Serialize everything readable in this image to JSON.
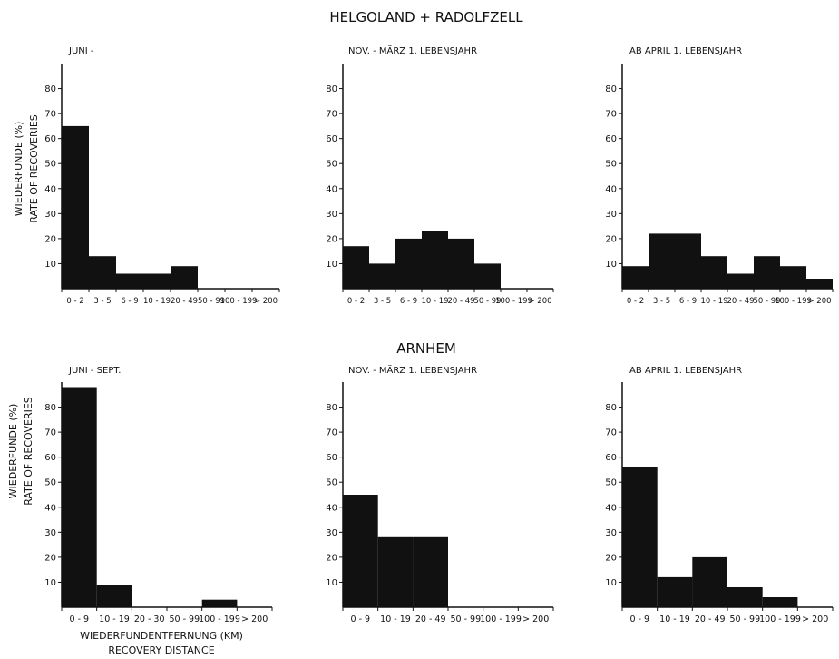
{
  "figure": {
    "top_heading": "HELGOLAND + RADOLFZELL",
    "middle_heading": "ARNHEM",
    "ylabel_de": "WIEDERFUNDE (%)",
    "ylabel_en": "RATE OF RECOVERIES",
    "xlabel_de": "WIEDERFUNDENTFERNUNG (KM)",
    "xlabel_en": "RECOVERY DISTANCE",
    "colors": {
      "bars": "#111111",
      "axis": "#111111"
    }
  },
  "chart_data": [
    {
      "type": "bar",
      "group": "HELGOLAND + RADOLFZELL",
      "title": "JUNI -",
      "categories": [
        "0 - 2",
        "3 - 5",
        "6 - 9",
        "10 - 19",
        "20 - 49",
        "50 - 99",
        "100 - 199",
        "> 200"
      ],
      "values": [
        65,
        13,
        6,
        6,
        9,
        0,
        0,
        0
      ],
      "yticks": [
        10,
        20,
        30,
        40,
        50,
        60,
        70,
        80
      ],
      "ylim": [
        0,
        90
      ]
    },
    {
      "type": "bar",
      "group": "HELGOLAND + RADOLFZELL",
      "title": "NOV. - MÄRZ 1. LEBENSJAHR",
      "categories": [
        "0 - 2",
        "3 - 5",
        "6 - 9",
        "10 - 19",
        "20 - 49",
        "50 - 99",
        "100 - 199",
        "> 200"
      ],
      "values": [
        17,
        10,
        20,
        23,
        20,
        10,
        0,
        0
      ],
      "yticks": [
        10,
        20,
        30,
        40,
        50,
        60,
        70,
        80
      ],
      "ylim": [
        0,
        90
      ]
    },
    {
      "type": "bar",
      "group": "HELGOLAND + RADOLFZELL",
      "title": "AB APRIL 1. LEBENSJAHR",
      "categories": [
        "0 - 2",
        "3 - 5",
        "6 - 9",
        "10 - 19",
        "20 - 49",
        "50 - 99",
        "100 - 199",
        "> 200"
      ],
      "values": [
        9,
        22,
        22,
        13,
        6,
        13,
        9,
        4
      ],
      "yticks": [
        10,
        20,
        30,
        40,
        50,
        60,
        70,
        80
      ],
      "ylim": [
        0,
        90
      ]
    },
    {
      "type": "bar",
      "group": "ARNHEM",
      "title": "JUNI - SEPT.",
      "categories": [
        "0 - 9",
        "10 - 19",
        "20 - 30",
        "50 - 99",
        "100 - 199",
        "> 200"
      ],
      "values": [
        88,
        9,
        0,
        0,
        3,
        0
      ],
      "yticks": [
        10,
        20,
        30,
        40,
        50,
        60,
        70,
        80
      ],
      "ylim": [
        0,
        90
      ]
    },
    {
      "type": "bar",
      "group": "ARNHEM",
      "title": "NOV. - MÄRZ 1. LEBENSJAHR",
      "categories": [
        "0 - 9",
        "10 - 19",
        "20 - 49",
        "50 - 99",
        "100 - 199",
        "> 200"
      ],
      "values": [
        45,
        28,
        28,
        0,
        0,
        0
      ],
      "yticks": [
        10,
        20,
        30,
        40,
        50,
        60,
        70,
        80
      ],
      "ylim": [
        0,
        90
      ]
    },
    {
      "type": "bar",
      "group": "ARNHEM",
      "title": "AB APRIL 1. LEBENSJAHR",
      "categories": [
        "0 - 9",
        "10 - 19",
        "20 - 49",
        "50 - 99",
        "100 - 199",
        "> 200"
      ],
      "values": [
        56,
        12,
        20,
        8,
        4,
        0
      ],
      "yticks": [
        10,
        20,
        30,
        40,
        50,
        60,
        70,
        80
      ],
      "ylim": [
        0,
        90
      ]
    }
  ]
}
